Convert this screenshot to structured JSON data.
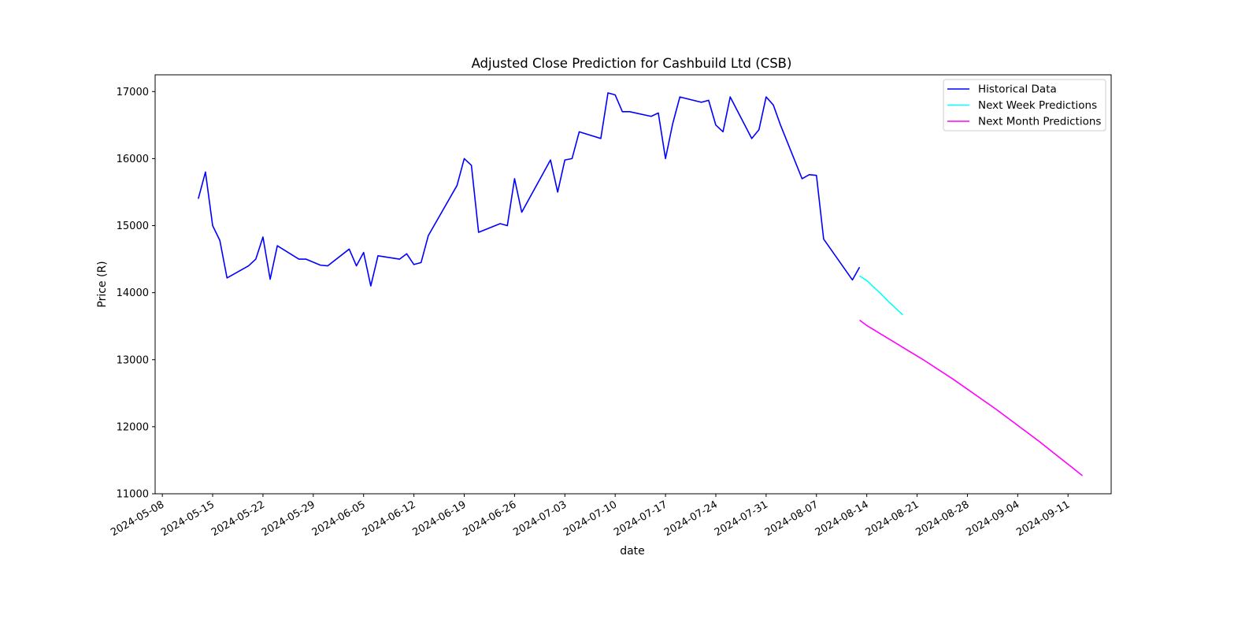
{
  "chart_data": {
    "type": "line",
    "title": "Adjusted Close Prediction for Cashbuild Ltd (CSB)",
    "xlabel": "date",
    "ylabel": "Price (R)",
    "xlim": [
      "2024-05-07",
      "2024-09-17"
    ],
    "ylim": [
      11000,
      17250
    ],
    "x_ticks": [
      "2024-05-08",
      "2024-05-15",
      "2024-05-22",
      "2024-05-29",
      "2024-06-05",
      "2024-06-12",
      "2024-06-19",
      "2024-06-26",
      "2024-07-03",
      "2024-07-10",
      "2024-07-17",
      "2024-07-24",
      "2024-07-31",
      "2024-08-07",
      "2024-08-14",
      "2024-08-21",
      "2024-08-28",
      "2024-09-04",
      "2024-09-11"
    ],
    "y_ticks": [
      11000,
      12000,
      13000,
      14000,
      15000,
      16000,
      17000
    ],
    "grid": false,
    "legend_position": "top-right",
    "series": [
      {
        "name": "Historical Data",
        "color": "#0000ff",
        "points": [
          [
            "2024-05-13",
            15400
          ],
          [
            "2024-05-14",
            15800
          ],
          [
            "2024-05-15",
            15000
          ],
          [
            "2024-05-16",
            14780
          ],
          [
            "2024-05-17",
            14220
          ],
          [
            "2024-05-20",
            14400
          ],
          [
            "2024-05-21",
            14500
          ],
          [
            "2024-05-22",
            14830
          ],
          [
            "2024-05-23",
            14200
          ],
          [
            "2024-05-24",
            14700
          ],
          [
            "2024-05-27",
            14500
          ],
          [
            "2024-05-28",
            14500
          ],
          [
            "2024-05-30",
            14410
          ],
          [
            "2024-05-31",
            14400
          ],
          [
            "2024-06-03",
            14650
          ],
          [
            "2024-06-04",
            14400
          ],
          [
            "2024-06-05",
            14600
          ],
          [
            "2024-06-06",
            14100
          ],
          [
            "2024-06-07",
            14550
          ],
          [
            "2024-06-10",
            14500
          ],
          [
            "2024-06-11",
            14580
          ],
          [
            "2024-06-12",
            14420
          ],
          [
            "2024-06-13",
            14450
          ],
          [
            "2024-06-14",
            14850
          ],
          [
            "2024-06-18",
            15600
          ],
          [
            "2024-06-19",
            16000
          ],
          [
            "2024-06-20",
            15900
          ],
          [
            "2024-06-21",
            14900
          ],
          [
            "2024-06-24",
            15030
          ],
          [
            "2024-06-25",
            15000
          ],
          [
            "2024-06-26",
            15700
          ],
          [
            "2024-06-27",
            15200
          ],
          [
            "2024-07-01",
            15980
          ],
          [
            "2024-07-02",
            15500
          ],
          [
            "2024-07-03",
            15980
          ],
          [
            "2024-07-04",
            16000
          ],
          [
            "2024-07-05",
            16400
          ],
          [
            "2024-07-08",
            16300
          ],
          [
            "2024-07-09",
            16980
          ],
          [
            "2024-07-10",
            16950
          ],
          [
            "2024-07-11",
            16700
          ],
          [
            "2024-07-12",
            16700
          ],
          [
            "2024-07-15",
            16630
          ],
          [
            "2024-07-16",
            16680
          ],
          [
            "2024-07-17",
            16000
          ],
          [
            "2024-07-18",
            16520
          ],
          [
            "2024-07-19",
            16920
          ],
          [
            "2024-07-22",
            16840
          ],
          [
            "2024-07-23",
            16870
          ],
          [
            "2024-07-24",
            16500
          ],
          [
            "2024-07-25",
            16400
          ],
          [
            "2024-07-26",
            16920
          ],
          [
            "2024-07-29",
            16300
          ],
          [
            "2024-07-30",
            16430
          ],
          [
            "2024-07-31",
            16920
          ],
          [
            "2024-08-01",
            16800
          ],
          [
            "2024-08-02",
            16500
          ],
          [
            "2024-08-05",
            15700
          ],
          [
            "2024-08-06",
            15760
          ],
          [
            "2024-08-07",
            15750
          ],
          [
            "2024-08-08",
            14800
          ],
          [
            "2024-08-12",
            14190
          ],
          [
            "2024-08-13",
            14380
          ]
        ]
      },
      {
        "name": "Next Week Predictions",
        "color": "#00ffff",
        "points": [
          [
            "2024-08-13",
            14250
          ],
          [
            "2024-08-14",
            14180
          ],
          [
            "2024-08-15",
            14080
          ],
          [
            "2024-08-16",
            13980
          ],
          [
            "2024-08-17",
            13870
          ],
          [
            "2024-08-18",
            13770
          ],
          [
            "2024-08-19",
            13670
          ]
        ]
      },
      {
        "name": "Next Month Predictions",
        "color": "#ff00ff",
        "points": [
          [
            "2024-08-13",
            13590
          ],
          [
            "2024-08-14",
            13510
          ],
          [
            "2024-08-16",
            13380
          ],
          [
            "2024-08-18",
            13250
          ],
          [
            "2024-08-20",
            13120
          ],
          [
            "2024-08-22",
            12990
          ],
          [
            "2024-08-24",
            12850
          ],
          [
            "2024-08-26",
            12710
          ],
          [
            "2024-08-28",
            12560
          ],
          [
            "2024-08-30",
            12410
          ],
          [
            "2024-09-01",
            12260
          ],
          [
            "2024-09-03",
            12100
          ],
          [
            "2024-09-05",
            11940
          ],
          [
            "2024-09-07",
            11780
          ],
          [
            "2024-09-09",
            11610
          ],
          [
            "2024-09-11",
            11440
          ],
          [
            "2024-09-13",
            11270
          ]
        ]
      }
    ]
  }
}
